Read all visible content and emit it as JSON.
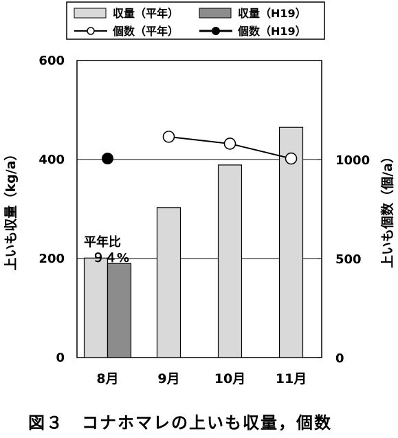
{
  "chart_data": {
    "type": "bar",
    "categories": [
      "8月",
      "9月",
      "10月",
      "11月"
    ],
    "series": [
      {
        "name": "収量（平年）",
        "kind": "bar",
        "axis": "left",
        "color": "#d9d9d9",
        "values": [
          201,
          303,
          389,
          465
        ]
      },
      {
        "name": "収量（H19）",
        "kind": "bar",
        "axis": "left",
        "color": "#8c8c8c",
        "values": [
          190,
          null,
          null,
          null
        ]
      },
      {
        "name": "個数（平年）",
        "kind": "line",
        "axis": "right",
        "marker": "open-circle",
        "values": [
          null,
          1115,
          1080,
          1005
        ]
      },
      {
        "name": "個数（H19）",
        "kind": "line",
        "axis": "right",
        "marker": "filled-circle",
        "values": [
          1005,
          null,
          null,
          null
        ]
      }
    ],
    "ylabel": "上いも収量（kg/a）",
    "ylabel_right": "上いも個数（個/a）",
    "ylim": [
      0,
      600
    ],
    "ylim_right": [
      0,
      1500
    ],
    "yticks": [
      "0",
      "200",
      "400",
      "600"
    ],
    "yticks_right": [
      "0",
      "500",
      "1000"
    ],
    "grid": true,
    "legend": "top",
    "annotation_line1": "平年比",
    "annotation_line2": "９４%",
    "caption": "図３　コナホマレの上いも収量，個数"
  }
}
